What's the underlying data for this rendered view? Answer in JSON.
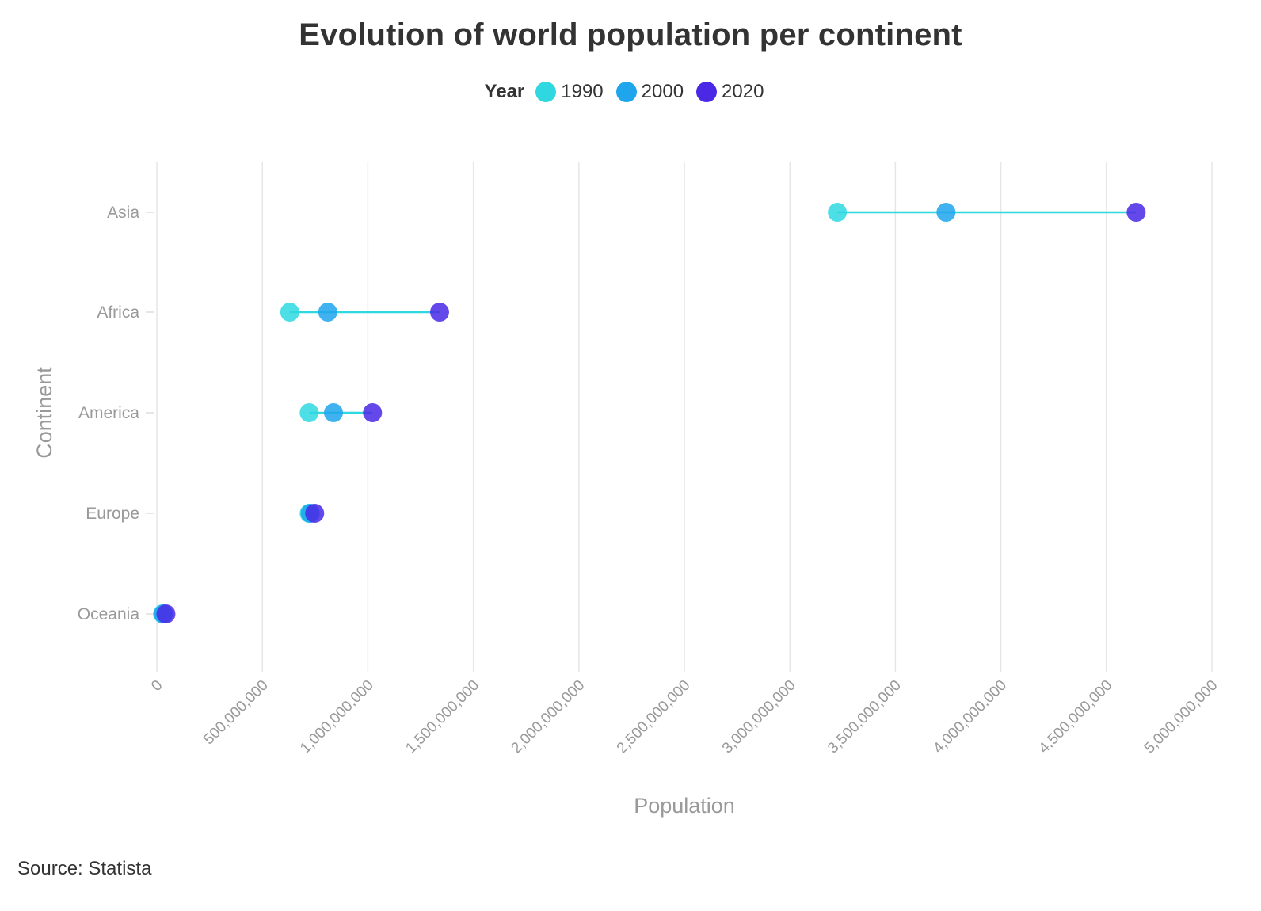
{
  "chart_data": {
    "type": "dumbbell",
    "title": "Evolution of world population per continent",
    "xlabel": "Population",
    "ylabel": "Continent",
    "xlim": [
      0,
      5000000000
    ],
    "x_ticks": [
      0,
      500000000,
      1000000000,
      1500000000,
      2000000000,
      2500000000,
      3000000000,
      3500000000,
      4000000000,
      4500000000,
      5000000000
    ],
    "x_tick_labels": [
      "0",
      "500,000,000",
      "1,000,000,000",
      "1,500,000,000",
      "2,000,000,000",
      "2,500,000,000",
      "3,000,000,000",
      "3,500,000,000",
      "4,000,000,000",
      "4,500,000,000",
      "5,000,000,000"
    ],
    "categories": [
      "Asia",
      "Africa",
      "America",
      "Europe",
      "Oceania"
    ],
    "legend": {
      "title": "Year",
      "placement": "top-center"
    },
    "grid": true,
    "series": [
      {
        "name": "1990",
        "color": "#2FD8E0",
        "values": [
          3225000000,
          630000000,
          722000000,
          722000000,
          27000000
        ]
      },
      {
        "name": "2000",
        "color": "#1EA5EC",
        "values": [
          3740000000,
          810000000,
          837000000,
          727000000,
          31000000
        ]
      },
      {
        "name": "2020",
        "color": "#4A28E6",
        "values": [
          4641000000,
          1340000000,
          1022000000,
          748000000,
          43000000
        ]
      }
    ],
    "connector_color": "#2FD8E0"
  },
  "source": "Source: Statista"
}
